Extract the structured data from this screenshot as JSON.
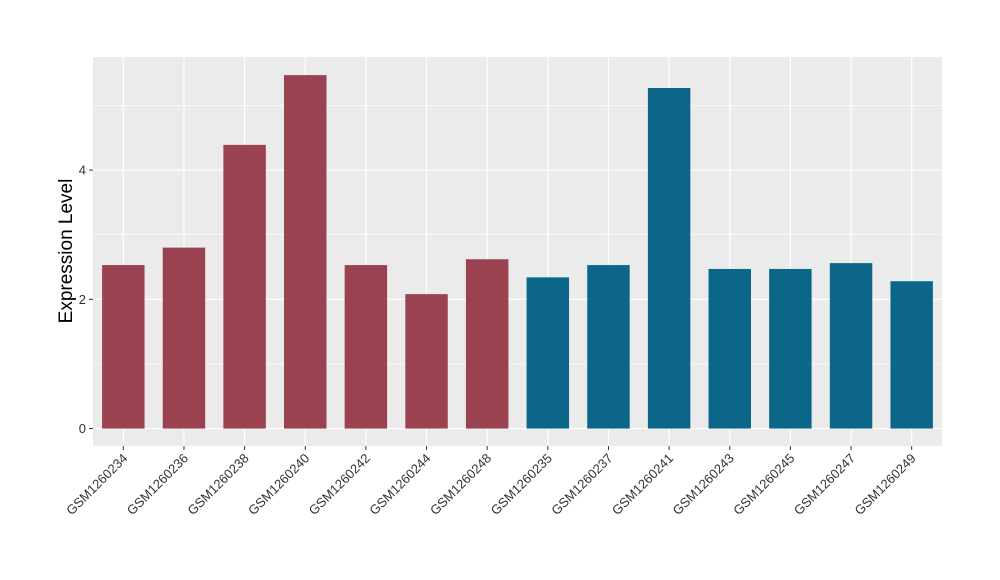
{
  "chart_data": {
    "type": "bar",
    "title": "",
    "xlabel": "",
    "ylabel": "Expression Level",
    "ylim": [
      -0.27,
      5.75
    ],
    "yticks": [
      0,
      2,
      4
    ],
    "grid": true,
    "legend": "none",
    "categories": [
      "GSM1260234",
      "GSM1260236",
      "GSM1260238",
      "GSM1260240",
      "GSM1260242",
      "GSM1260244",
      "GSM1260248",
      "GSM1260235",
      "GSM1260237",
      "GSM1260241",
      "GSM1260243",
      "GSM1260245",
      "GSM1260247",
      "GSM1260249"
    ],
    "values": [
      2.53,
      2.8,
      4.39,
      5.47,
      2.53,
      2.08,
      2.62,
      2.34,
      2.53,
      5.27,
      2.47,
      2.47,
      2.56,
      2.28
    ],
    "groups": [
      0,
      0,
      0,
      0,
      0,
      0,
      0,
      1,
      1,
      1,
      1,
      1,
      1,
      1
    ],
    "colors": [
      "#9b4250",
      "#0b6687"
    ]
  }
}
